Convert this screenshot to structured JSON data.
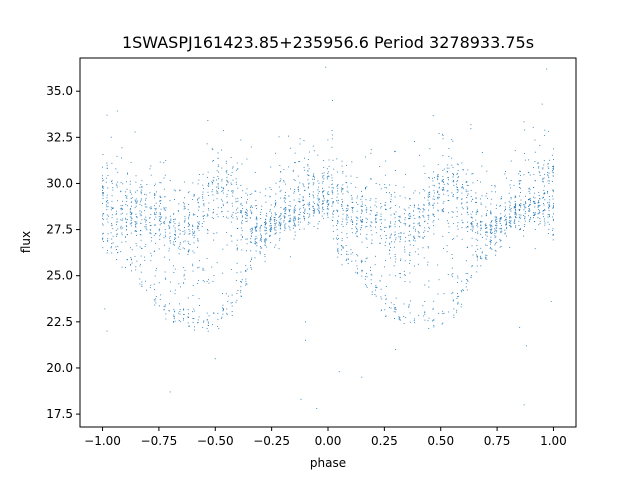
{
  "chart_data": {
    "type": "scatter",
    "title": "1SWASPJ161423.85+235956.6 Period 3278933.75s",
    "xlabel": "phase",
    "ylabel": "flux",
    "xlim": [
      -1.1,
      1.1
    ],
    "ylim": [
      16.8,
      36.8
    ],
    "x_ticks": [
      -1.0,
      -0.75,
      -0.5,
      -0.25,
      0.0,
      0.25,
      0.5,
      0.75,
      1.0
    ],
    "x_tick_labels": [
      "−1.00",
      "−0.75",
      "−0.50",
      "−0.25",
      "0.00",
      "0.25",
      "0.50",
      "0.75",
      "1.00"
    ],
    "y_ticks": [
      17.5,
      20.0,
      22.5,
      25.0,
      27.5,
      30.0,
      32.5,
      35.0
    ],
    "y_tick_labels": [
      "17.5",
      "20.0",
      "22.5",
      "25.0",
      "27.5",
      "30.0",
      "32.5",
      "35.0"
    ],
    "grid": false,
    "marker_color": "#1f77b4",
    "series": [
      {
        "x": [
          -1.0,
          -0.95,
          -0.9,
          -0.85,
          -0.8,
          -0.75,
          -0.7,
          -0.65,
          -0.6,
          -0.55,
          -0.5,
          -0.45,
          -0.4,
          -0.35,
          -0.3,
          -0.25,
          -0.2,
          -0.15,
          -0.1,
          -0.05,
          0.0,
          0.05,
          0.1,
          0.15,
          0.2,
          0.25,
          0.3,
          0.35,
          0.4,
          0.45,
          0.5,
          0.55,
          0.6,
          0.65,
          0.7,
          0.75,
          0.8,
          0.85,
          0.9,
          0.95,
          1.0
        ],
        "upper_band": [
          29.8,
          29.0,
          28.6,
          28.5,
          28.4,
          28.2,
          27.9,
          27.8,
          28.0,
          29.0,
          29.8,
          30.0,
          29.2,
          28.3,
          27.8,
          28.0,
          28.6,
          29.0,
          29.2,
          29.5,
          29.8,
          29.0,
          28.6,
          28.5,
          28.4,
          28.2,
          27.9,
          27.8,
          28.0,
          29.0,
          29.8,
          30.0,
          29.2,
          28.3,
          27.8,
          28.0,
          28.6,
          29.0,
          29.2,
          29.5,
          29.8
        ],
        "lower_envelope": [
          27.0,
          26.2,
          25.8,
          25.2,
          24.3,
          23.5,
          23.0,
          22.8,
          22.6,
          22.5,
          22.6,
          23.0,
          24.0,
          25.5,
          26.5,
          27.2,
          27.8,
          28.0,
          28.2,
          28.4,
          28.5,
          26.2,
          25.8,
          25.2,
          24.3,
          23.5,
          23.0,
          22.8,
          22.6,
          22.5,
          22.6,
          23.0,
          24.0,
          25.5,
          26.5,
          27.2,
          27.8,
          28.0,
          28.2,
          28.4,
          27.0
        ]
      }
    ],
    "outliers": [
      [
        -0.98,
        33.7
      ],
      [
        -0.99,
        23.2
      ],
      [
        -0.98,
        22.0
      ],
      [
        -0.7,
        18.7
      ],
      [
        -0.5,
        20.5
      ],
      [
        -0.1,
        21.5
      ],
      [
        -0.1,
        22.5
      ],
      [
        -0.05,
        17.8
      ],
      [
        -0.01,
        36.3
      ],
      [
        0.05,
        19.8
      ],
      [
        0.02,
        34.5
      ],
      [
        -0.12,
        18.3
      ],
      [
        0.85,
        22.2
      ],
      [
        0.88,
        21.2
      ],
      [
        0.87,
        18.0
      ],
      [
        0.97,
        36.2
      ],
      [
        0.99,
        23.6
      ],
      [
        0.95,
        34.3
      ],
      [
        0.3,
        21.0
      ],
      [
        0.15,
        19.5
      ]
    ]
  }
}
